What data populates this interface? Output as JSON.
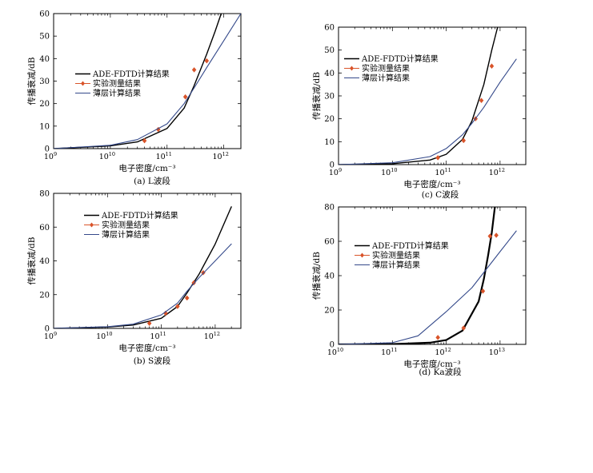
{
  "chart_data": [
    {
      "type": "line",
      "caption": "(a) L波段",
      "xlabel": "电子密度/cm⁻³",
      "ylabel": "传播衰减/dB",
      "xscale": "log",
      "xlim": [
        1000000000.0,
        2000000000000.0
      ],
      "ylim": [
        0,
        60
      ],
      "yticks": [
        0,
        10,
        20,
        30,
        40,
        50,
        60
      ],
      "xtick_exponents": [
        9,
        10,
        11,
        12
      ],
      "legend": [
        "ADE-FDTD计算结果",
        "实验测量结果",
        "薄层计算结果"
      ],
      "legend_position": "center-left",
      "series": [
        {
          "name": "ADE-FDTD计算结果",
          "style": "line",
          "color": "#000000",
          "x": [
            1000000000.0,
            10000000000.0,
            30000000000.0,
            100000000000.0,
            200000000000.0,
            300000000000.0,
            500000000000.0,
            700000000000.0,
            900000000000.0
          ],
          "y": [
            0,
            1.2,
            3,
            9,
            18,
            28,
            42,
            52,
            60
          ]
        },
        {
          "name": "实验测量结果",
          "style": "marker",
          "color": "#d9542a",
          "x": [
            40000000000.0,
            70000000000.0,
            210000000000.0,
            300000000000.0,
            500000000000.0
          ],
          "y": [
            3.5,
            8.5,
            23,
            35,
            39
          ]
        },
        {
          "name": "薄层计算结果",
          "style": "line",
          "color": "#34498a",
          "x": [
            1000000000.0,
            10000000000.0,
            30000000000.0,
            100000000000.0,
            200000000000.0,
            300000000000.0,
            500000000000.0,
            1000000000000.0,
            2000000000000.0
          ],
          "y": [
            0,
            1.5,
            4,
            11,
            20,
            27,
            36,
            48,
            60
          ]
        }
      ]
    },
    {
      "type": "line",
      "caption": "(b) S波段",
      "xlabel": "电子密度/cm⁻³",
      "ylabel": "传播衰减/dB",
      "xscale": "log",
      "xlim": [
        1000000000.0,
        3000000000000.0
      ],
      "ylim": [
        0,
        80
      ],
      "yticks": [
        0,
        20,
        40,
        60,
        80
      ],
      "xtick_exponents": [
        9,
        10,
        11,
        12
      ],
      "legend": [
        "ADE-FDTD计算结果",
        "实验测量结果",
        "薄层计算结果"
      ],
      "legend_position": "top-right",
      "series": [
        {
          "name": "ADE-FDTD计算结果",
          "style": "line",
          "color": "#000000",
          "x": [
            1000000000.0,
            10000000000.0,
            30000000000.0,
            100000000000.0,
            200000000000.0,
            300000000000.0,
            500000000000.0,
            1000000000000.0,
            2000000000000.0
          ],
          "y": [
            0,
            0.8,
            2,
            6,
            13,
            21,
            32,
            50,
            72
          ]
        },
        {
          "name": "实验测量结果",
          "style": "marker",
          "color": "#d9542a",
          "x": [
            60000000000.0,
            120000000000.0,
            200000000000.0,
            300000000000.0,
            400000000000.0,
            600000000000.0
          ],
          "y": [
            3,
            9,
            13,
            18,
            27,
            33
          ]
        },
        {
          "name": "薄层计算结果",
          "style": "line",
          "color": "#34498a",
          "x": [
            1000000000.0,
            10000000000.0,
            30000000000.0,
            100000000000.0,
            200000000000.0,
            300000000000.0,
            500000000000.0,
            1000000000000.0,
            2000000000000.0
          ],
          "y": [
            0,
            1,
            2.5,
            8,
            15,
            22,
            30,
            40,
            50
          ]
        }
      ]
    },
    {
      "type": "line",
      "caption": "(c) C波段",
      "xlabel": "电子密度/cm⁻³",
      "ylabel": "传播衰减/dB",
      "xscale": "log",
      "xlim": [
        1000000000.0,
        3000000000000.0
      ],
      "ylim": [
        0,
        60
      ],
      "yticks": [
        0,
        10,
        20,
        30,
        40,
        50,
        60
      ],
      "xtick_exponents": [
        9,
        10,
        11,
        12
      ],
      "legend": [
        "ADE-FDTD计算结果",
        "实验测量结果",
        "薄层计算结果"
      ],
      "legend_position": "top-left",
      "series": [
        {
          "name": "ADE-FDTD计算结果",
          "style": "line",
          "color": "#000000",
          "x": [
            1000000000.0,
            10000000000.0,
            50000000000.0,
            100000000000.0,
            200000000000.0,
            300000000000.0,
            500000000000.0,
            700000000000.0,
            900000000000.0
          ],
          "y": [
            0,
            0.4,
            2,
            4.5,
            11,
            19,
            35,
            50,
            60
          ]
        },
        {
          "name": "实验测量结果",
          "style": "marker",
          "color": "#d9542a",
          "x": [
            70000000000.0,
            210000000000.0,
            350000000000.0,
            450000000000.0,
            700000000000.0
          ],
          "y": [
            3,
            10.5,
            20,
            28,
            43
          ]
        },
        {
          "name": "薄层计算结果",
          "style": "line",
          "color": "#34498a",
          "x": [
            1000000000.0,
            10000000000.0,
            50000000000.0,
            100000000000.0,
            200000000000.0,
            300000000000.0,
            500000000000.0,
            1000000000000.0,
            2000000000000.0
          ],
          "y": [
            0,
            0.8,
            3.5,
            7,
            13,
            18,
            25,
            36,
            46
          ]
        }
      ]
    },
    {
      "type": "line",
      "caption": "(d) Ka波段",
      "xlabel": "电子密度/cm⁻³",
      "ylabel": "传播衰减/dB",
      "xscale": "log",
      "xlim": [
        10000000000.0,
        30000000000000.0
      ],
      "ylim": [
        0,
        80
      ],
      "yticks": [
        0,
        20,
        40,
        60,
        80
      ],
      "xtick_exponents": [
        10,
        11,
        12,
        13
      ],
      "legend": [
        "ADE-FDTD计算结果",
        "实验测量结果",
        "薄层计算结果"
      ],
      "legend_position": "top-left",
      "series": [
        {
          "name": "ADE-FDTD计算结果",
          "style": "line",
          "color": "#000000",
          "x": [
            10000000000.0,
            100000000000.0,
            500000000000.0,
            1000000000000.0,
            2000000000000.0,
            4000000000000.0,
            5000000000000.0,
            6000000000000.0,
            7000000000000.0,
            8000000000000.0
          ],
          "y": [
            0,
            0.2,
            1,
            2.5,
            8,
            25,
            38,
            52,
            65,
            80
          ]
        },
        {
          "name": "实验测量结果",
          "style": "marker",
          "color": "#d9542a",
          "x": [
            700000000000.0,
            2100000000000.0,
            4800000000000.0,
            6500000000000.0,
            8500000000000.0
          ],
          "y": [
            4,
            9.5,
            31,
            63,
            63.5
          ]
        },
        {
          "name": "薄层计算结果",
          "style": "line",
          "color": "#34498a",
          "x": [
            10000000000.0,
            100000000000.0,
            300000000000.0,
            1000000000000.0,
            3000000000000.0,
            10000000000000.0,
            20000000000000.0
          ],
          "y": [
            0,
            1,
            5,
            19,
            33,
            54,
            66
          ]
        }
      ]
    }
  ]
}
